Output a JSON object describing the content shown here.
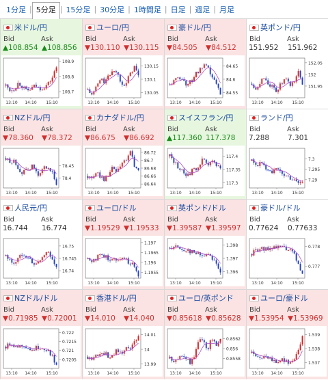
{
  "tabs": [
    "1分足",
    "5分足",
    "15分足",
    "30分足",
    "1時間足",
    "日足",
    "週足",
    "月足"
  ],
  "active_tab": 1,
  "bid_label": "Bid",
  "ask_label": "Ask",
  "colors": {
    "up": "#1a8a1a",
    "down": "#d03030",
    "candle_up": "#d42020",
    "candle_down": "#2040c0",
    "ma": "#b04ec0"
  },
  "pairs": [
    {
      "name": "米ドル/円",
      "dir": "up",
      "bid": "▲108.854",
      "ask": "▲108.856",
      "times": [
        "13:10",
        "14:10",
        "15:10"
      ],
      "yticks": [
        "108.9",
        "108.8",
        "108.7"
      ],
      "ymin": 108.66,
      "ymax": 108.92,
      "trend": [
        108.74,
        108.71,
        108.72,
        108.76,
        108.73,
        108.7,
        108.72,
        108.74,
        108.72,
        108.73,
        108.75,
        108.79,
        108.86
      ]
    },
    {
      "name": "ユーロ/円",
      "dir": "down",
      "bid": "▼130.110",
      "ask": "▼130.115",
      "times": [
        "13:10",
        "14:10",
        "15:10"
      ],
      "yticks": [
        "130.15",
        "130.1",
        "130.05"
      ],
      "ymin": 130.03,
      "ymax": 130.18,
      "trend": [
        130.06,
        130.04,
        130.07,
        130.1,
        130.09,
        130.11,
        130.14,
        130.12,
        130.09,
        130.08,
        130.12,
        130.15,
        130.11
      ]
    },
    {
      "name": "豪ドル/円",
      "dir": "down",
      "bid": "▼84.505",
      "ask": "▼84.512",
      "times": [
        "13:10",
        "14:10",
        "15:10"
      ],
      "yticks": [
        "84.65",
        "84.6",
        "84.55"
      ],
      "ymin": 84.53,
      "ymax": 84.68,
      "trend": [
        84.58,
        84.59,
        84.61,
        84.6,
        84.58,
        84.59,
        84.62,
        84.63,
        84.65,
        84.64,
        84.61,
        84.58,
        84.55
      ]
    },
    {
      "name": "英ポンド/円",
      "dir": "flat",
      "bid": "151.952",
      "ask": "151.962",
      "times": [
        "13:10",
        "14:10",
        "15:10"
      ],
      "yticks": [
        "152.05",
        "152",
        "151.95"
      ],
      "ymin": 151.9,
      "ymax": 152.07,
      "trend": [
        151.96,
        151.94,
        151.97,
        151.99,
        151.96,
        151.94,
        151.93,
        151.96,
        151.98,
        151.95,
        151.97,
        152.01,
        151.96
      ]
    },
    {
      "name": "NZドル/円",
      "dir": "down",
      "bid": "▼78.360",
      "ask": "▼78.372",
      "times": [
        "13:10",
        "14:10",
        "15:10"
      ],
      "yticks": [
        "78.45",
        "78.4"
      ],
      "ymin": 78.36,
      "ymax": 78.52,
      "trend": [
        78.48,
        78.46,
        78.47,
        78.44,
        78.42,
        78.43,
        78.45,
        78.43,
        78.41,
        78.44,
        78.45,
        78.42,
        78.37
      ]
    },
    {
      "name": "カナダドル/円",
      "dir": "down",
      "bid": "▼86.675",
      "ask": "▼86.692",
      "times": [
        "13:10",
        "14:10",
        "15:10"
      ],
      "yticks": [
        "86.72",
        "86.7",
        "86.68",
        "86.66",
        "86.64"
      ],
      "ymin": 86.63,
      "ymax": 86.73,
      "trend": [
        86.66,
        86.65,
        86.67,
        86.66,
        86.65,
        86.67,
        86.68,
        86.67,
        86.69,
        86.7,
        86.72,
        86.69,
        86.67
      ]
    },
    {
      "name": "スイスフラン/円",
      "dir": "up",
      "bid": "▲117.360",
      "ask": "117.378",
      "times": [
        "13:10",
        "14:10",
        "15:10"
      ],
      "yticks": [
        "117.4",
        "117.35",
        "117.3"
      ],
      "ymin": 117.28,
      "ymax": 117.43,
      "trend": [
        117.4,
        117.38,
        117.36,
        117.34,
        117.33,
        117.34,
        117.35,
        117.37,
        117.39,
        117.36,
        117.38,
        117.37,
        117.36
      ]
    },
    {
      "name": "ランド/円",
      "dir": "flat",
      "bid": "7.288",
      "ask": "7.301",
      "times": [
        "13:10",
        "14:10",
        "15:10"
      ],
      "yticks": [
        "7.3",
        "7.295",
        "7.29"
      ],
      "ymin": 7.286,
      "ymax": 7.305,
      "trend": [
        7.299,
        7.297,
        7.298,
        7.296,
        7.295,
        7.294,
        7.295,
        7.293,
        7.292,
        7.291,
        7.29,
        7.289,
        7.289
      ]
    },
    {
      "name": "人民元/円",
      "dir": "flat",
      "bid": "16.744",
      "ask": "16.774",
      "times": [
        "13:10",
        "14:10",
        "15:10"
      ],
      "yticks": [
        "16.75",
        "16.745",
        "16.74"
      ],
      "ymin": 16.737,
      "ymax": 16.753,
      "trend": [
        16.746,
        16.744,
        16.743,
        16.745,
        16.747,
        16.746,
        16.744,
        16.742,
        16.744,
        16.746,
        16.748,
        16.745,
        16.741
      ]
    },
    {
      "name": "ユーロ/ドル",
      "dir": "down",
      "bid": "▼1.19529",
      "ask": "▼1.19533",
      "times": [
        "13:10",
        "14:10",
        "15:10"
      ],
      "yticks": [
        "1.197",
        "1.1965",
        "1.196",
        "1.1955"
      ],
      "ymin": 1.1952,
      "ymax": 1.1972,
      "trend": [
        1.1962,
        1.1961,
        1.1962,
        1.1964,
        1.1963,
        1.1962,
        1.1961,
        1.1962,
        1.1963,
        1.1961,
        1.196,
        1.1958,
        1.1954
      ]
    },
    {
      "name": "英ポンド/ドル",
      "dir": "down",
      "bid": "▼1.39587",
      "ask": "▼1.39597",
      "times": [
        "13:10",
        "14:10",
        "15:10"
      ],
      "yticks": [
        "1.398",
        "1.397",
        "1.396"
      ],
      "ymin": 1.3955,
      "ymax": 1.3985,
      "trend": [
        1.3978,
        1.3979,
        1.3978,
        1.3976,
        1.3977,
        1.3975,
        1.3974,
        1.3973,
        1.3972,
        1.3974,
        1.3971,
        1.3966,
        1.396
      ]
    },
    {
      "name": "豪ドル/ドル",
      "dir": "flat",
      "bid": "0.77624",
      "ask": "0.77633",
      "times": [
        "13:10",
        "14:10",
        "15:10"
      ],
      "yticks": [
        "0.778",
        "0.777"
      ],
      "ymin": 0.7764,
      "ymax": 0.7784,
      "trend": [
        0.7776,
        0.7778,
        0.7779,
        0.7778,
        0.7779,
        0.778,
        0.7779,
        0.778,
        0.7779,
        0.7778,
        0.7776,
        0.7771,
        0.7766
      ]
    },
    {
      "name": "NZドル/ドル",
      "dir": "down",
      "bid": "▼0.71985",
      "ask": "▼0.72001",
      "times": [
        "13:10",
        "14:10",
        "15:10"
      ],
      "yticks": [
        "0.722",
        "0.7215",
        "0.721",
        "0.7205"
      ],
      "ymin": 0.72,
      "ymax": 0.7222,
      "trend": [
        0.7212,
        0.7214,
        0.7213,
        0.7212,
        0.7213,
        0.7212,
        0.721,
        0.7211,
        0.7212,
        0.7211,
        0.721,
        0.7207,
        0.7201
      ]
    },
    {
      "name": "香港ドル/円",
      "dir": "down",
      "bid": "▼14.010",
      "ask": "▼14.040",
      "times": [
        "13:10",
        "14:10",
        "15:10"
      ],
      "yticks": [
        "14.01",
        "14",
        "13.99"
      ],
      "ymin": 13.987,
      "ymax": 14.014,
      "trend": [
        13.995,
        13.993,
        13.996,
        13.998,
        13.997,
        13.995,
        13.997,
        13.999,
        13.998,
        14.001,
        14.0,
        14.004,
        14.01
      ]
    },
    {
      "name": "ユーロ/英ポンド",
      "dir": "down",
      "bid": "▼0.85618",
      "ask": "▼0.85628",
      "times": [
        "13:10",
        "14:10",
        "15:10"
      ],
      "yticks": [
        "0.8562",
        "0.856",
        "0.8558"
      ],
      "ymin": 0.8556,
      "ymax": 0.8564,
      "trend": [
        0.8558,
        0.8557,
        0.8558,
        0.8559,
        0.8558,
        0.8557,
        0.8559,
        0.8562,
        0.8561,
        0.856,
        0.8562,
        0.8561,
        0.8562
      ]
    },
    {
      "name": "ユーロ/豪ドル",
      "dir": "down",
      "bid": "▼1.53954",
      "ask": "▼1.53969",
      "times": [
        "13:10",
        "14:10",
        "15:10"
      ],
      "yticks": [
        "1.539",
        "1.538",
        "1.537"
      ],
      "ymin": 1.5366,
      "ymax": 1.5394,
      "trend": [
        1.5377,
        1.5376,
        1.5375,
        1.5373,
        1.5374,
        1.5372,
        1.5371,
        1.5372,
        1.5371,
        1.537,
        1.5373,
        1.538,
        1.5388
      ]
    }
  ]
}
